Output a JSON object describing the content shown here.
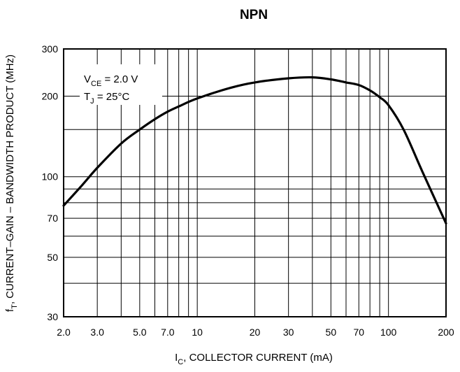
{
  "chart_data": {
    "type": "line",
    "title": "NPN",
    "xlabel": {
      "main": "I",
      "sub": "C",
      "rest": ", COLLECTOR CURRENT (mA)"
    },
    "ylabel": {
      "main": "f",
      "sub": "T",
      "rest": ", CURRENT–GAIN – BANDWIDTH PRODUCT (MHz)"
    },
    "x_scale": "log",
    "y_scale": "log",
    "xlim": [
      2,
      200
    ],
    "ylim": [
      30,
      300
    ],
    "x_ticks": [
      2,
      3,
      5,
      7,
      10,
      20,
      30,
      50,
      70,
      100,
      200
    ],
    "x_tick_labels": [
      "2.0",
      "3.0",
      "5.0",
      "7.0",
      "10",
      "20",
      "30",
      "50",
      "70",
      "100",
      "200"
    ],
    "y_ticks": [
      30,
      50,
      70,
      100,
      200,
      300
    ],
    "y_tick_labels": [
      "30",
      "50",
      "70",
      "100",
      "200",
      "300"
    ],
    "x_grid": [
      3,
      4,
      5,
      6,
      7,
      8,
      9,
      10,
      20,
      30,
      40,
      50,
      60,
      70,
      80,
      90,
      100
    ],
    "y_grid": [
      40,
      50,
      60,
      70,
      80,
      90,
      100,
      150,
      200
    ],
    "grid": true,
    "annotations": [
      {
        "main": "V",
        "sub": "CE",
        "rest": " = 2.0 V"
      },
      {
        "main": "T",
        "sub": "J",
        "rest": " = 25°C"
      }
    ],
    "series": [
      {
        "x": [
          2,
          2.5,
          3,
          4,
          5,
          6,
          7,
          8,
          10,
          15,
          20,
          30,
          40,
          50,
          60,
          70,
          80,
          90,
          100,
          120,
          150,
          200
        ],
        "y": [
          78,
          93,
          108,
          133,
          150,
          164,
          175,
          183,
          196,
          215,
          225,
          233,
          235,
          231,
          225,
          220,
          210,
          198,
          185,
          150,
          105,
          67
        ]
      }
    ]
  }
}
